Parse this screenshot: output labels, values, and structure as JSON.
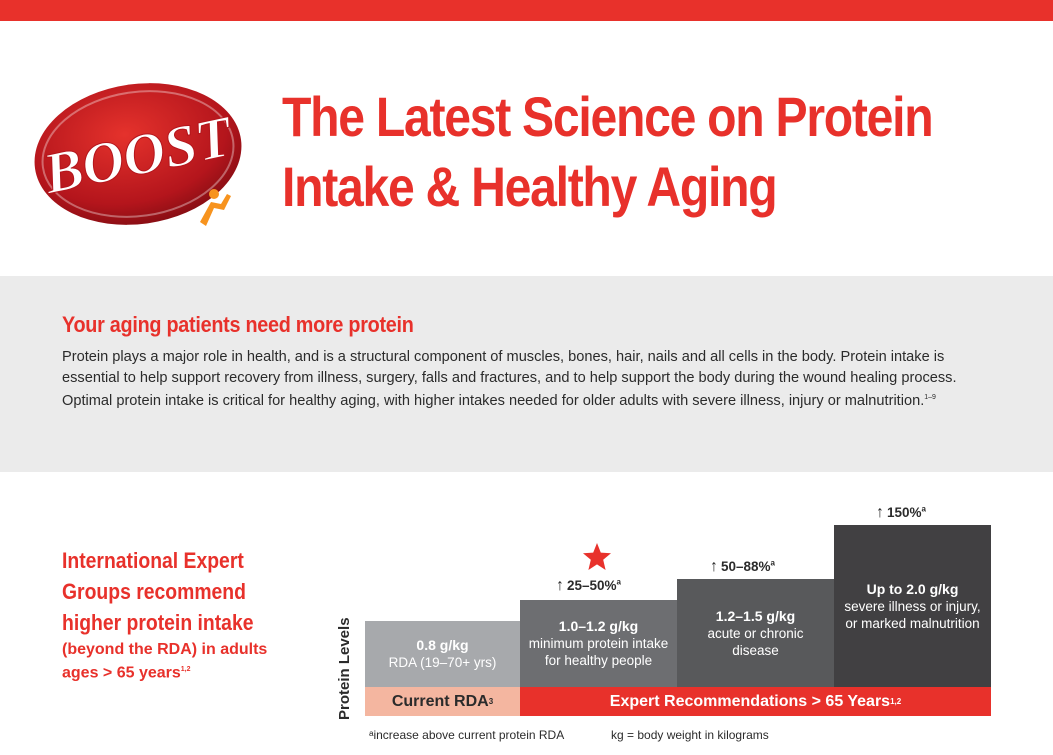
{
  "brand": {
    "logo_text": "BOOST",
    "colors": {
      "red": "#e8312b",
      "light_salmon": "#f4b6a0",
      "gray_band": "#ebebeb"
    }
  },
  "header": {
    "title_line1": "The Latest Science on Protein",
    "title_line2": "Intake & Healthy Aging"
  },
  "intro": {
    "heading": "Your aging patients need more protein",
    "body": "Protein plays a major role in health, and is a structural component of muscles, bones, hair, nails and all cells in the body. Protein intake is essential to help support recovery from illness, surgery, falls and fractures, and to help support the body during the wound healing process. Optimal protein intake is critical for healthy aging, with higher intakes needed for older adults with severe illness, injury or malnutrition.",
    "body_ref": "1–9"
  },
  "sidebar": {
    "heading": "International Expert Groups recommend higher protein intake",
    "sub": "(beyond the RDA) in adults ages > 65 years",
    "sub_ref": "1,2"
  },
  "chart_data": {
    "type": "bar",
    "ylabel": "Protein Levels",
    "categories": [
      {
        "amount": "0.8 g/kg",
        "description": "RDA (19–70+ yrs)",
        "increase": ""
      },
      {
        "amount": "1.0–1.2 g/kg",
        "description": "minimum protein intake for healthy people",
        "increase": "25–50%",
        "highlighted": true
      },
      {
        "amount": "1.2–1.5 g/kg",
        "description": "acute or chronic disease",
        "increase": "50–88%"
      },
      {
        "amount": "Up to 2.0 g/kg",
        "description": "severe illness or injury, or marked malnutrition",
        "increase": "150%"
      }
    ],
    "values": [
      0.8,
      1.1,
      1.35,
      2.0
    ],
    "increase_note_marker": "a",
    "groups": {
      "current": "Current RDA",
      "current_ref": "3",
      "expert": "Expert Recommendations > 65 Years",
      "expert_ref": "1,2"
    }
  },
  "footnotes": {
    "increase_note": "ᵃincrease above current protein RDA",
    "kg_note": "kg = body weight in kilograms"
  }
}
